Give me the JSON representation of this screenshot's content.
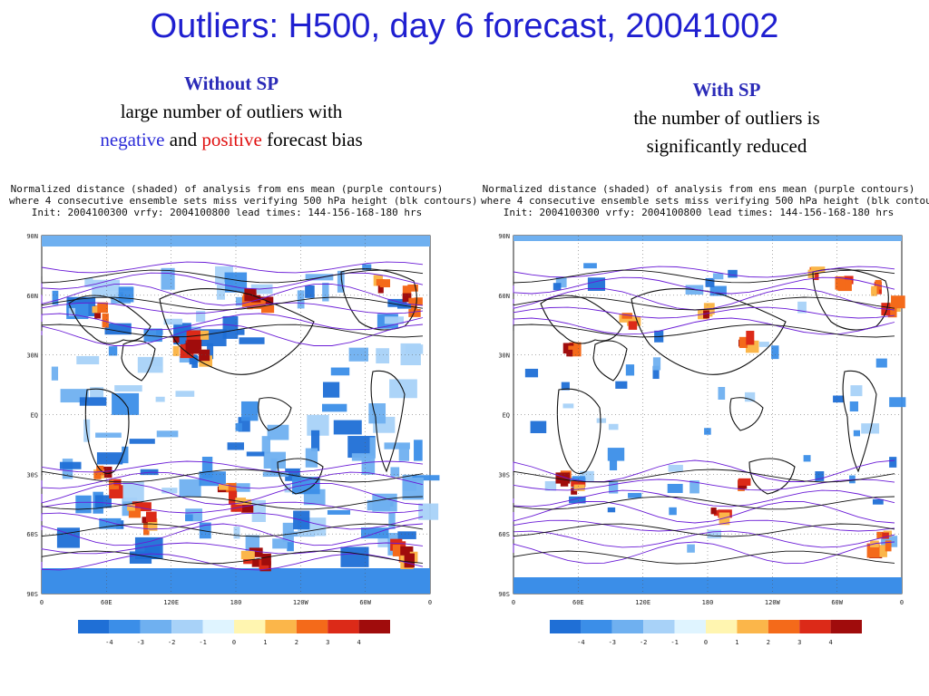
{
  "slide": {
    "title": "Outliers: H500, day 6 forecast, 20041002"
  },
  "left": {
    "heading": "Without SP",
    "line1": "large number of outliers with",
    "neg_word": "negative",
    "and_word": " and ",
    "pos_word": "positive",
    "tail": " forecast bias"
  },
  "right": {
    "heading": "With SP",
    "line1": "the number of outliers is",
    "line2": "significantly reduced"
  },
  "panel_title": {
    "line1": "Normalized distance (shaded) of analysis from ens mean (purple contours)",
    "line2": "where 4 consecutive ensemble sets miss verifying 500 hPa height (blk contours)",
    "line3": "Init: 2004100300 vrfy: 2004100800 lead times: 144-156-168-180 hrs"
  },
  "axes": {
    "lat_labels": [
      "90N",
      "60N",
      "30N",
      "EQ",
      "30S",
      "60S",
      "90S"
    ],
    "lon_labels": [
      "0",
      "60E",
      "120E",
      "180",
      "120W",
      "60W",
      "0"
    ]
  },
  "colorbar": {
    "colors": [
      "#1f6fd6",
      "#3b8ee8",
      "#6fb0f0",
      "#a8d2f8",
      "#dff4ff",
      "#fff5b0",
      "#fbb64a",
      "#f46a1a",
      "#dc2a18",
      "#a00c0c"
    ],
    "labels": [
      "-4",
      "-3",
      "-2",
      "-1",
      "0",
      "1",
      "2",
      "3",
      "4"
    ]
  }
}
